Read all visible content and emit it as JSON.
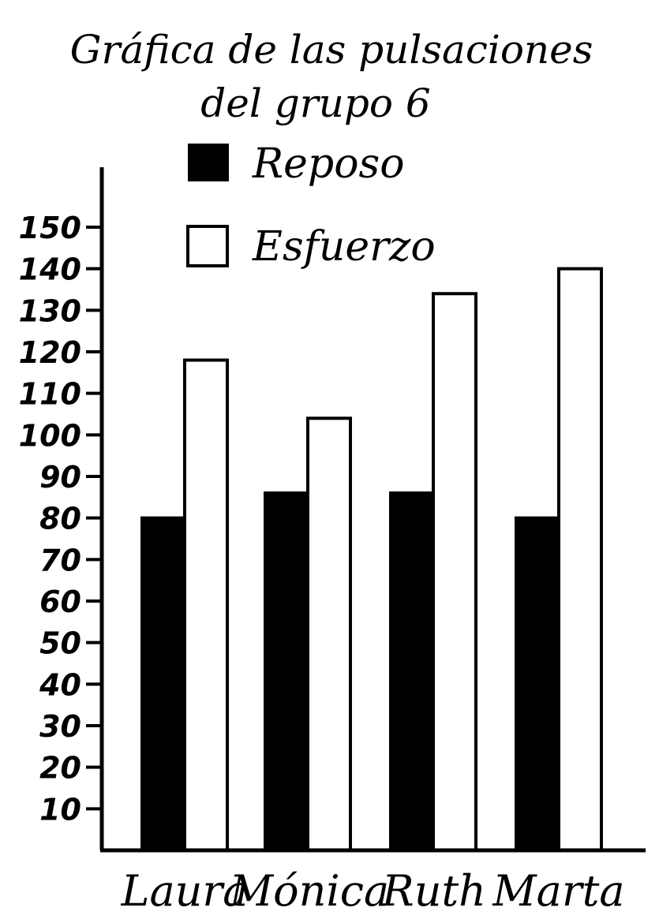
{
  "chart_data": {
    "type": "bar",
    "title": "Gráfica de las pulsaciones",
    "subtitle": "del grupo 6",
    "categories": [
      "Laura",
      "Mónica",
      "Ruth",
      "Marta"
    ],
    "series": [
      {
        "name": "Reposo",
        "values": [
          80,
          86,
          86,
          80
        ],
        "color": "#000000"
      },
      {
        "name": "Esfuerzo",
        "values": [
          118,
          104,
          134,
          140
        ],
        "color": "#ffffff"
      }
    ],
    "yticks": [
      "10",
      "20",
      "30",
      "40",
      "50",
      "60",
      "70",
      "80",
      "90",
      "100",
      "110",
      "120",
      "130",
      "140",
      "150"
    ],
    "ylim": [
      0,
      150
    ],
    "xlabel": "",
    "ylabel": "",
    "grid": false,
    "legend": "top-center"
  }
}
